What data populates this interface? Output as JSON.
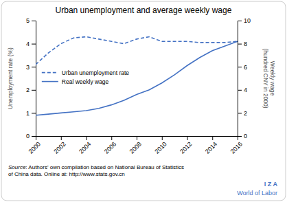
{
  "chart_data": {
    "type": "line",
    "title": "Urban unemployment and average weekly wage",
    "x": [
      2000,
      2001,
      2002,
      2003,
      2004,
      2005,
      2006,
      2007,
      2008,
      2009,
      2010,
      2011,
      2012,
      2013,
      2014,
      2015,
      2016
    ],
    "series": [
      {
        "name": "Urban unemployment rate",
        "color": "#4472C4",
        "line_style": "dashed",
        "values": [
          3.1,
          3.6,
          4.0,
          4.25,
          4.3,
          4.2,
          4.1,
          4.0,
          4.2,
          4.3,
          4.1,
          4.1,
          4.1,
          4.05,
          4.05,
          4.05,
          4.1
        ]
      },
      {
        "name": "Real weekly wage",
        "color": "#4472C4",
        "line_style": "solid",
        "axis": "y2",
        "values": [
          1.8,
          1.9,
          2.0,
          2.1,
          2.2,
          2.4,
          2.7,
          3.1,
          3.6,
          4.0,
          4.6,
          5.3,
          6.1,
          6.8,
          7.4,
          7.8,
          8.2
        ]
      }
    ],
    "xlim": [
      2000,
      2016
    ],
    "xticks": [
      2000,
      2002,
      2004,
      2006,
      2008,
      2010,
      2012,
      2014,
      2016
    ],
    "ylim": [
      0,
      5
    ],
    "yticks": [
      0,
      1,
      2,
      3,
      4,
      5
    ],
    "y2lim": [
      0,
      10
    ],
    "y2ticks": [
      0,
      2,
      4,
      6,
      8,
      10
    ],
    "ylabel": "Unemployment rate (%)",
    "y2label": "Weekly wage\n(hundred CNY in 2000)",
    "legend": "left",
    "annotations": [
      "Source",
      ": Authors' own compilation based on National Bureau of Statistics\nof China data. Online at: http://www.stats.gov.cn",
      "I Z A",
      "World of Labor"
    ]
  }
}
